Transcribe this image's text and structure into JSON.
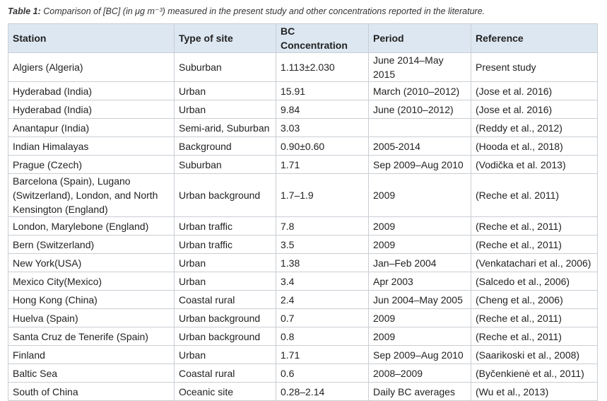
{
  "caption": {
    "label": "Table 1:",
    "text": "Comparison of [BC] (in μg m⁻³) measured in the present study and other concentrations reported in the literature."
  },
  "table": {
    "header": [
      "Station",
      "Type of site",
      "BC Concentration",
      "Period",
      "Reference"
    ],
    "rows": [
      [
        "Algiers (Algeria)",
        "Suburban",
        "1.113±2.030",
        "June 2014–May 2015",
        "Present study"
      ],
      [
        "Hyderabad (India)",
        "Urban",
        "15.91",
        "March (2010–2012)",
        "(Jose et al. 2016)"
      ],
      [
        "Hyderabad (India)",
        "Urban",
        "9.84",
        "June (2010–2012)",
        "(Jose et al. 2016)"
      ],
      [
        "Anantapur (India)",
        "Semi-arid, Suburban",
        "3.03",
        null,
        "(Reddy et al., 2012)"
      ],
      [
        "Indian Himalayas",
        "Background",
        "0.90±0.60",
        "2005-2014",
        "(Hooda et al., 2018)"
      ],
      [
        "Prague (Czech)",
        "Suburban",
        "1.71",
        "Sep 2009–Aug 2010",
        "(Vodička et al. 2013)"
      ],
      [
        "Barcelona (Spain), Lugano (Switzerland), London, and North Kensington (England)",
        "Urban background",
        "1.7–1.9",
        "2009",
        "(Reche et al. 2011)"
      ],
      [
        "London, Marylebone (England)",
        "Urban traffic",
        "7.8",
        "2009",
        "(Reche et al., 2011)"
      ],
      [
        "Bern (Switzerland)",
        "Urban traffic",
        "3.5",
        "2009",
        "(Reche et al., 2011)"
      ],
      [
        "New York(USA)",
        "Urban",
        "1.38",
        "Jan–Feb 2004",
        "(Venkatachari et al., 2006)"
      ],
      [
        "Mexico City(Mexico)",
        "Urban",
        "3.4",
        "Apr 2003",
        "(Salcedo et al., 2006)"
      ],
      [
        "Hong Kong (China)",
        "Coastal rural",
        "2.4",
        "Jun 2004–May 2005",
        "(Cheng et al., 2006)"
      ],
      [
        "Huelva (Spain)",
        "Urban background",
        "0.7",
        "2009",
        "(Reche et al., 2011)"
      ],
      [
        "Santa Cruz de Tenerife (Spain)",
        "Urban background",
        "0.8",
        "2009",
        "(Reche et al., 2011)"
      ],
      [
        "Finland",
        "Urban",
        "1.71",
        "Sep 2009–Aug 2010",
        "(Saarikoski et al., 2008)"
      ],
      [
        "Baltic Sea",
        "Coastal rural",
        "0.6",
        "2008–2009",
        "(Byčenkienė et al., 2011)"
      ],
      [
        "South of China",
        "Oceanic site",
        "0.28–2.14",
        "Daily BC averages",
        "(Wu et al., 2013)"
      ]
    ]
  }
}
